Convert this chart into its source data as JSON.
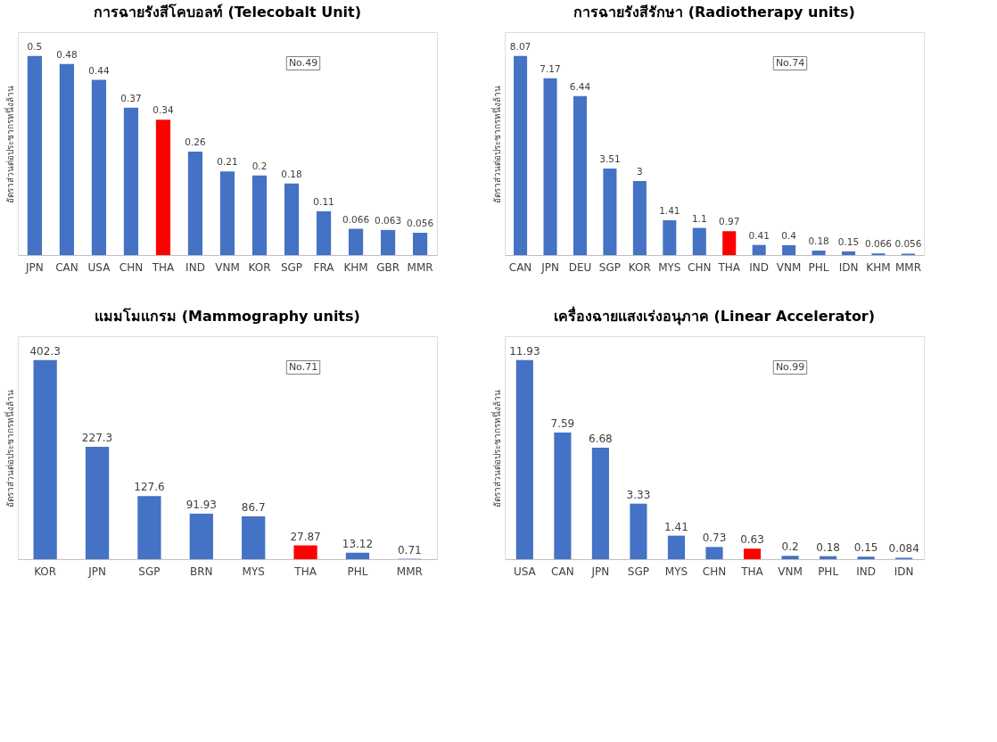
{
  "chart_data": [
    {
      "type": "bar",
      "title": "การฉายรังสีโคบอลท์ (Telecobalt Unit)",
      "ylabel": "อัตราส่วนต่อประชากรหนึ่งล้าน",
      "categories": [
        "JPN",
        "CAN",
        "USA",
        "CHN",
        "THA",
        "IND",
        "VNM",
        "KOR",
        "SGP",
        "FRA",
        "KHM",
        "GBR",
        "MMR"
      ],
      "values": [
        0.5,
        0.48,
        0.44,
        0.37,
        0.34,
        0.26,
        0.21,
        0.2,
        0.18,
        0.11,
        0.066,
        0.063,
        0.056
      ],
      "colors": [
        "#4472c4",
        "#4472c4",
        "#4472c4",
        "#4472c4",
        "#ff0000",
        "#4472c4",
        "#4472c4",
        "#4472c4",
        "#4472c4",
        "#4472c4",
        "#4472c4",
        "#4472c4",
        "#4472c4"
      ],
      "data_labels": true,
      "tick_labels": "x",
      "annotations": [
        "No.49"
      ]
    },
    {
      "type": "bar",
      "title": "การฉายรังสีรักษา (Radiotherapy units)",
      "ylabel": "อัตราส่วนต่อประชากรหนึ่งล้าน",
      "categories": [
        "CAN",
        "JPN",
        "DEU",
        "SGP",
        "KOR",
        "MYS",
        "CHN",
        "THA",
        "IND",
        "VNM",
        "PHL",
        "IDN",
        "KHM",
        "MMR"
      ],
      "values": [
        8.07,
        7.17,
        6.44,
        3.51,
        3,
        1.41,
        1.1,
        0.97,
        0.41,
        0.4,
        0.18,
        0.15,
        0.066,
        0.056
      ],
      "colors": [
        "#4472c4",
        "#4472c4",
        "#4472c4",
        "#4472c4",
        "#4472c4",
        "#4472c4",
        "#4472c4",
        "#ff0000",
        "#4472c4",
        "#4472c4",
        "#4472c4",
        "#4472c4",
        "#4472c4",
        "#4472c4"
      ],
      "data_labels": true,
      "tick_labels": "x",
      "annotations": [
        "No.74"
      ]
    },
    {
      "type": "bar",
      "title": "แมมโมแกรม (Mammography units)",
      "ylabel": "อัตราส่วนต่อประชากรหนึ่งล้าน",
      "categories": [
        "KOR",
        "JPN",
        "SGP",
        "BRN",
        "MYS",
        "THA",
        "PHL",
        "MMR"
      ],
      "values": [
        402.3,
        227.3,
        127.6,
        91.93,
        86.7,
        27.87,
        13.12,
        0.71
      ],
      "colors": [
        "#4472c4",
        "#4472c4",
        "#4472c4",
        "#4472c4",
        "#4472c4",
        "#ff0000",
        "#4472c4",
        "#4472c4"
      ],
      "data_labels": true,
      "tick_labels": "x",
      "annotations": [
        "No.71"
      ]
    },
    {
      "type": "bar",
      "title": "เครื่องฉายแสงเร่งอนุภาค (Linear Accelerator)",
      "ylabel": "อัตราส่วนต่อประชากรหนึ่งล้าน",
      "categories": [
        "USA",
        "CAN",
        "JPN",
        "SGP",
        "MYS",
        "CHN",
        "THA",
        "VNM",
        "PHL",
        "IND",
        "IDN"
      ],
      "values": [
        11.93,
        7.59,
        6.68,
        3.33,
        1.41,
        0.73,
        0.63,
        0.2,
        0.18,
        0.15,
        0.084
      ],
      "colors": [
        "#4472c4",
        "#4472c4",
        "#4472c4",
        "#4472c4",
        "#4472c4",
        "#4472c4",
        "#ff0000",
        "#4472c4",
        "#4472c4",
        "#4472c4",
        "#4472c4"
      ],
      "data_labels": true,
      "tick_labels": "x",
      "annotations": [
        "No.99"
      ]
    }
  ]
}
